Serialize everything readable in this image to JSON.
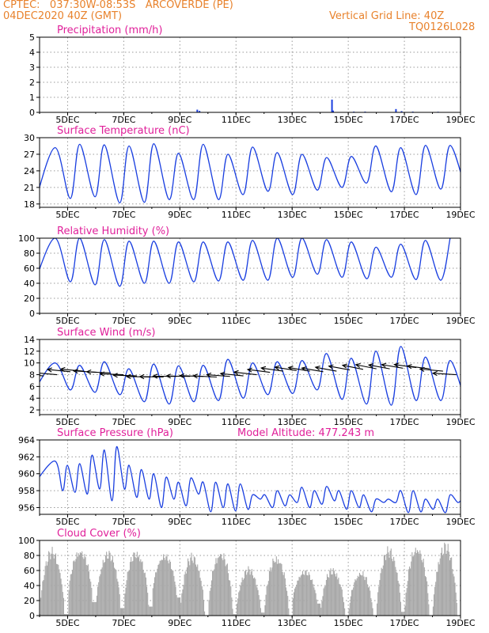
{
  "header": {
    "line1_left": "CPTEC:   037:30W-08:53S   ARCOVERDE (PE)",
    "line2_left": "04DEC2020 40Z (GMT)",
    "line1_right": "Vertical Grid Line: 40Z",
    "line2_right": "TQ0126L028"
  },
  "colors": {
    "header": "#e8822c",
    "title": "#e0209a",
    "series": "#1a3fe0",
    "cloud": "#a8a8a8",
    "grid": "#9a9a9a"
  },
  "x_ticks": [
    "5DEC",
    "7DEC",
    "9DEC",
    "11DEC",
    "13DEC",
    "15DEC",
    "17DEC",
    "19DEC"
  ],
  "chart_data": [
    {
      "id": "precip",
      "type": "bar",
      "title": "Precipitation (mm/h)",
      "x_range": [
        4.0,
        19.0
      ],
      "ylim": [
        0,
        5
      ],
      "yticks": [
        0,
        1,
        2,
        3,
        4,
        5
      ],
      "values": [
        {
          "x": 9.62,
          "y": 0.18
        },
        {
          "x": 9.7,
          "y": 0.1
        },
        {
          "x": 14.42,
          "y": 0.85
        },
        {
          "x": 14.46,
          "y": 0.12
        },
        {
          "x": 15.2,
          "y": 0.05
        },
        {
          "x": 15.6,
          "y": 0.05
        },
        {
          "x": 16.7,
          "y": 0.22
        },
        {
          "x": 16.9,
          "y": 0.08
        },
        {
          "x": 17.3,
          "y": 0.05
        },
        {
          "x": 18.2,
          "y": 0.04
        }
      ]
    },
    {
      "id": "temp",
      "type": "line",
      "title": "Surface Temperature (nC)",
      "x_range": [
        4.0,
        19.0
      ],
      "ylim": [
        17.4,
        30
      ],
      "yticks": [
        18,
        21,
        24,
        27,
        30
      ],
      "series": [
        {
          "name": "temperature",
          "max": [
            28.2,
            28.8,
            28.7,
            28.5,
            28.9,
            27.2,
            28.8,
            27.0,
            28.3,
            27.3,
            27.0,
            26.4,
            26.6,
            28.5,
            28.2,
            28.6,
            28.6
          ],
          "min": [
            18.5,
            19.0,
            19.3,
            18.2,
            18.3,
            18.8,
            18.8,
            18.8,
            19.7,
            20.3,
            19.7,
            20.5,
            21.0,
            21.8,
            20.2,
            19.7,
            20.7,
            20.7
          ]
        }
      ]
    },
    {
      "id": "rh",
      "type": "line",
      "title": "Relative Humidity (%)",
      "x_range": [
        4.0,
        19.0
      ],
      "ylim": [
        0,
        100
      ],
      "yticks": [
        0,
        20,
        40,
        60,
        80,
        100
      ],
      "series": [
        {
          "name": "humidity",
          "max": [
            100,
            100,
            98,
            96,
            96,
            95,
            95,
            95,
            97,
            100,
            100,
            98,
            95,
            88,
            92,
            97,
            100
          ],
          "min": [
            44,
            42,
            38,
            36,
            40,
            40,
            42,
            43,
            44,
            44,
            48,
            52,
            48,
            46,
            48,
            45,
            44
          ]
        }
      ]
    },
    {
      "id": "wind",
      "type": "line",
      "title": "Surface Wind (m/s)",
      "x_range": [
        4.0,
        19.0
      ],
      "ylim": [
        1.2,
        14
      ],
      "yticks": [
        2,
        4,
        6,
        8,
        10,
        12,
        14
      ],
      "series": [
        {
          "name": "wind_speed",
          "max": [
            10.0,
            9.6,
            10.2,
            9.0,
            9.8,
            9.5,
            9.6,
            10.6,
            10.0,
            10.2,
            10.4,
            11.6,
            10.8,
            12.0,
            12.8,
            11.0,
            10.4
          ],
          "min": [
            5.6,
            5.4,
            5.0,
            4.6,
            3.4,
            3.0,
            3.4,
            3.6,
            4.0,
            4.6,
            4.8,
            5.4,
            3.8,
            3.0,
            2.8,
            3.6,
            3.6,
            3.4
          ]
        }
      ],
      "vectors": {
        "count": 32,
        "speed_ms": [
          7.8,
          8.0,
          8.5,
          8.6,
          8.4,
          8.3,
          8.0,
          7.8,
          7.6,
          7.6,
          7.7,
          7.7,
          7.7,
          7.6,
          7.7,
          7.8,
          8.0,
          8.4,
          8.6,
          8.7,
          8.6,
          8.5,
          8.6,
          8.8,
          8.9,
          9.0,
          9.0,
          9.1,
          9.2,
          9.0,
          8.6,
          8.0
        ],
        "direction_deg": [
          100,
          104,
          106,
          104,
          100,
          98,
          96,
          95,
          94,
          93,
          92,
          93,
          95,
          98,
          102,
          106,
          108,
          110,
          112,
          114,
          116,
          116,
          118,
          118,
          120,
          120,
          118,
          116,
          112,
          110,
          105,
          100
        ]
      }
    },
    {
      "id": "pressure",
      "type": "line",
      "title": "Surface Pressure (hPa)",
      "annotation": "Model Altitude: 477.243 m",
      "x_range": [
        4.0,
        19.0
      ],
      "ylim": [
        955.2,
        964
      ],
      "yticks": [
        956,
        958,
        960,
        962,
        964
      ],
      "series": [
        {
          "name": "pressure",
          "max": [
            961.5,
            961.0,
            961.2,
            962.2,
            962.8,
            963.2,
            961.0,
            960.5,
            960.0,
            959.6,
            959.0,
            959.5,
            959.0,
            959.0,
            958.8,
            958.8,
            957.5,
            957.5,
            958.0,
            957.5,
            958.4,
            958.0,
            958.5,
            958.0,
            958.0,
            957.5,
            957.0,
            957.0,
            958.0,
            958.0,
            957.0,
            957.0,
            957.5,
            957.0
          ],
          "min": [
            959.0,
            958.0,
            957.8,
            957.6,
            958.2,
            956.8,
            958.2,
            957.2,
            957.0,
            956.0,
            957.0,
            956.2,
            957.6,
            955.5,
            956.0,
            955.6,
            955.8,
            957.0,
            956.0,
            956.2,
            956.6,
            956.0,
            956.4,
            956.8,
            955.8,
            956.0,
            955.5,
            956.6,
            956.6,
            955.4,
            955.5,
            955.8,
            955.4,
            956.6,
            956.8
          ]
        }
      ]
    },
    {
      "id": "cloud",
      "type": "area",
      "title": "Cloud Cover (%)",
      "x_range": [
        4.0,
        19.0
      ],
      "ylim": [
        0,
        100
      ],
      "yticks": [
        0,
        20,
        40,
        60,
        80,
        100
      ],
      "series": [
        {
          "name": "cloud_cover",
          "daily_peak": [
            92,
            92,
            88,
            90,
            84,
            85,
            90,
            66,
            84,
            62,
            66,
            62,
            93,
            98,
            100,
            90,
            94,
            98
          ],
          "nightly_low": [
            2,
            18,
            10,
            12,
            24,
            0,
            2,
            4,
            0,
            16,
            0,
            0,
            5,
            0,
            0,
            0,
            6,
            8
          ]
        }
      ]
    }
  ]
}
